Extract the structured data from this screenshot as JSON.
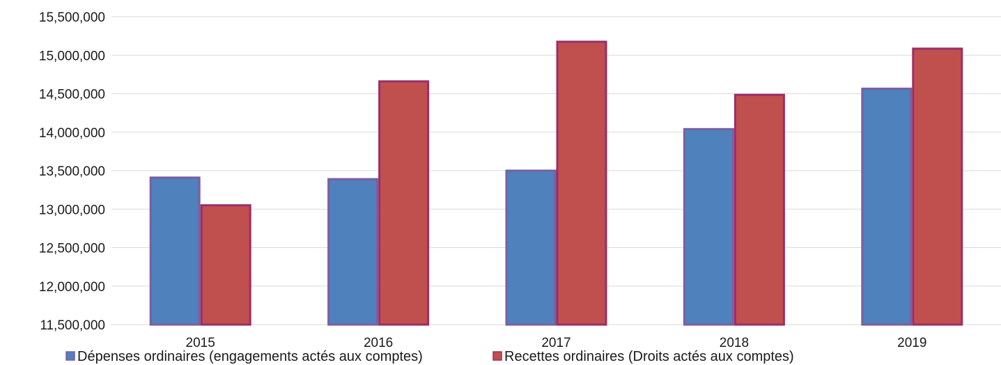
{
  "chart_data": {
    "type": "bar",
    "categories": [
      "2015",
      "2016",
      "2017",
      "2018",
      "2019"
    ],
    "series": [
      {
        "name": "Dépenses ordinaires (engagements actés aux comptes)",
        "color": "#4f81bd",
        "border_color": "#7b5fa0",
        "values": [
          13410000,
          13390000,
          13500000,
          14040000,
          14565000
        ]
      },
      {
        "name": "Recettes ordinaires (Droits actés aux comptes)",
        "color": "#c0504d",
        "border_color": "#9b2d6a",
        "values": [
          13050000,
          14660000,
          15175000,
          14485000,
          15085000
        ]
      }
    ],
    "title": "",
    "xlabel": "",
    "ylabel": "",
    "ylim": [
      11500000,
      15500000
    ],
    "yticks": [
      11500000,
      12000000,
      12500000,
      13000000,
      13500000,
      14000000,
      14500000,
      15000000,
      15500000
    ],
    "ytick_labels": [
      "11,500,000",
      "12,000,000",
      "12,500,000",
      "13,000,000",
      "13,500,000",
      "14,000,000",
      "14,500,000",
      "15,000,000",
      "15,500,000"
    ],
    "grid": true,
    "gridline_color": "#d9d9d9",
    "legend_position": "bottom-left"
  }
}
